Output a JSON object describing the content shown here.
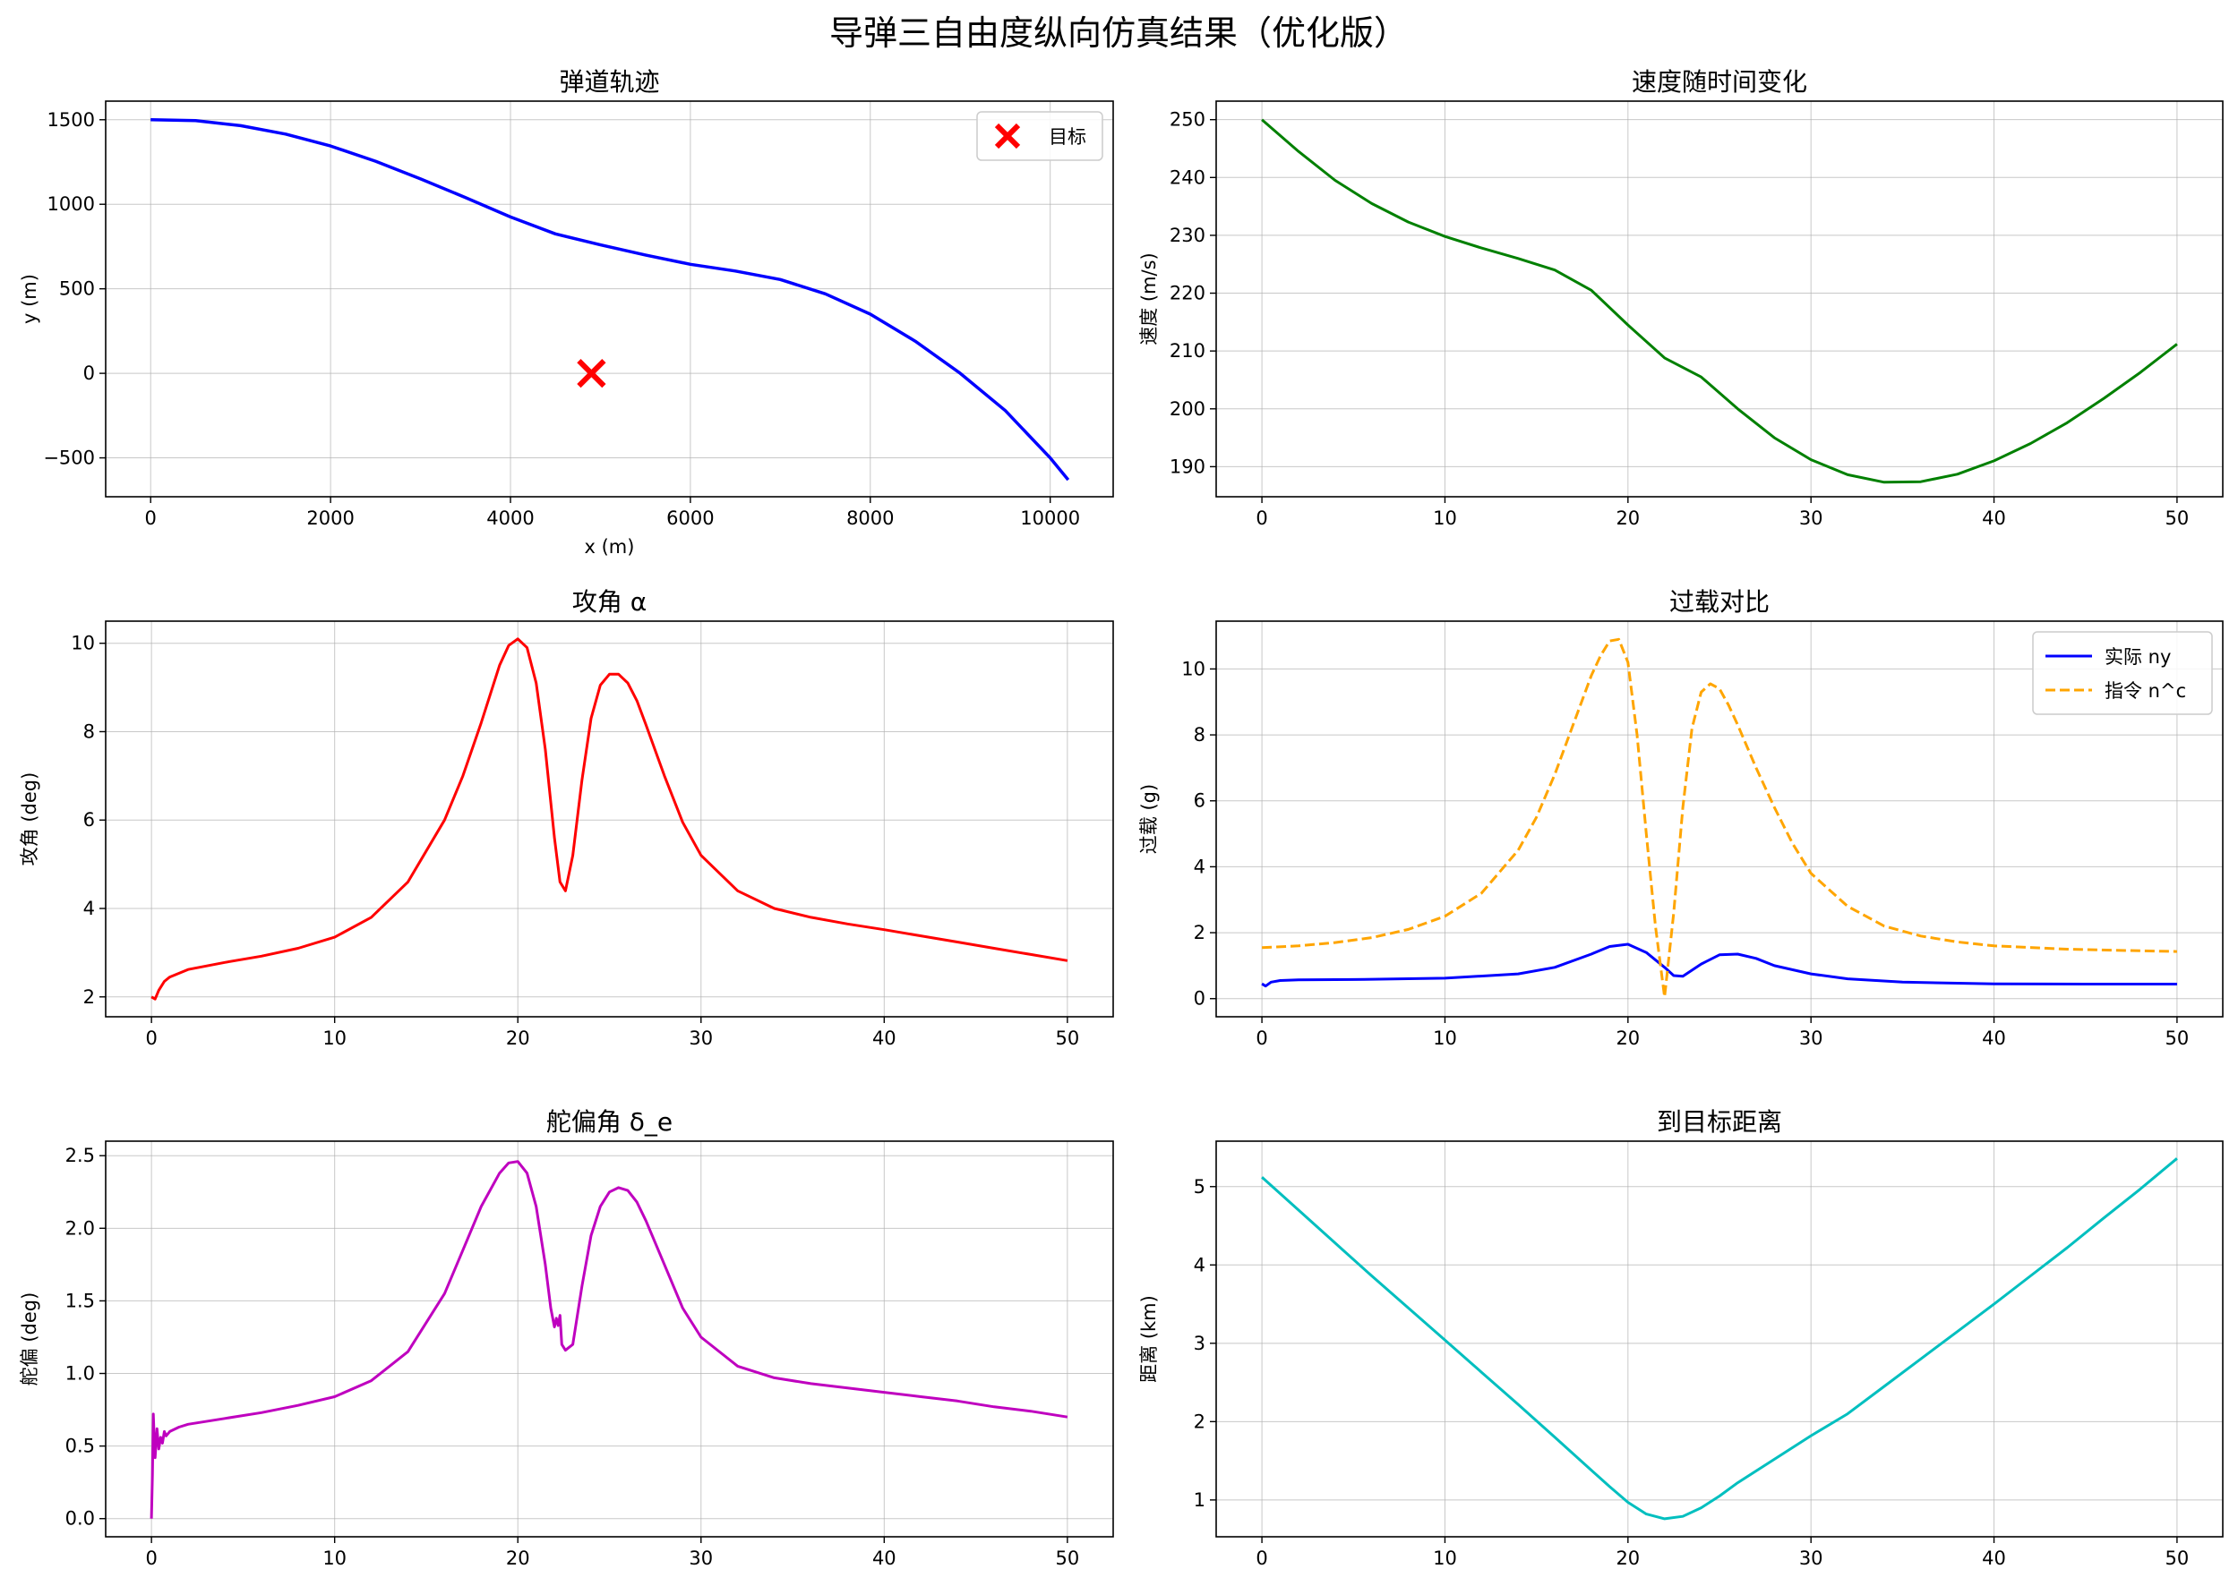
{
  "figure": {
    "title": "导弹三自由度纵向仿真结果（优化版）"
  },
  "chart_data": [
    {
      "id": "trajectory",
      "type": "line",
      "title": "弹道轨迹",
      "xlabel": "x (m)",
      "ylabel": "y (m)",
      "xlim": [
        -500,
        10700
      ],
      "ylim": [
        -730,
        1610
      ],
      "xticks": [
        0,
        2000,
        4000,
        6000,
        8000,
        10000
      ],
      "yticks": [
        -500,
        0,
        500,
        1000,
        1500
      ],
      "grid": true,
      "legend": {
        "position": "top-right",
        "entries": [
          {
            "label": "目标",
            "marker": "x",
            "color": "#ff0000"
          }
        ]
      },
      "series": [
        {
          "name": "",
          "color": "#0000ff",
          "style": "solid",
          "width": 3.5,
          "x": [
            0,
            500,
            1000,
            1500,
            2000,
            2500,
            3000,
            3500,
            4000,
            4500,
            5000,
            5500,
            6000,
            6500,
            7000,
            7500,
            8000,
            8500,
            9000,
            9500,
            10000,
            10200
          ],
          "y": [
            1500,
            1495,
            1465,
            1415,
            1345,
            1255,
            1150,
            1040,
            925,
            825,
            760,
            700,
            645,
            605,
            555,
            470,
            350,
            190,
            0,
            -220,
            -500,
            -630
          ]
        }
      ],
      "markers": [
        {
          "name": "目标",
          "x": 4900,
          "y": 0,
          "color": "#ff0000",
          "symbol": "x"
        }
      ]
    },
    {
      "id": "velocity",
      "type": "line",
      "title": "速度随时间变化",
      "xlabel": "",
      "ylabel": "速度 (m/s)",
      "xlim": [
        -2.5,
        52.5
      ],
      "ylim": [
        184.8,
        253.2
      ],
      "xticks": [
        0,
        10,
        20,
        30,
        40,
        50
      ],
      "yticks": [
        190,
        200,
        210,
        220,
        230,
        240,
        250
      ],
      "grid": true,
      "series": [
        {
          "name": "",
          "color": "#008000",
          "style": "solid",
          "width": 3,
          "x": [
            0,
            2,
            4,
            6,
            8,
            10,
            12,
            14,
            16,
            18,
            20,
            22,
            24,
            26,
            28,
            30,
            32,
            34,
            36,
            38,
            40,
            42,
            44,
            46,
            48,
            50
          ],
          "y": [
            250,
            244.5,
            239.5,
            235.5,
            232.3,
            229.8,
            227.8,
            226,
            224,
            220.5,
            214.5,
            208.8,
            205.5,
            200,
            195,
            191.2,
            188.6,
            187.3,
            187.4,
            188.7,
            191,
            194,
            197.6,
            201.8,
            206.3,
            211.2
          ]
        }
      ]
    },
    {
      "id": "aoa",
      "type": "line",
      "title": "攻角 α",
      "xlabel": "",
      "ylabel": "攻角 (deg)",
      "xlim": [
        -2.5,
        52.5
      ],
      "ylim": [
        1.55,
        10.5
      ],
      "xticks": [
        0,
        10,
        20,
        30,
        40,
        50
      ],
      "yticks": [
        2,
        4,
        6,
        8,
        10
      ],
      "grid": true,
      "series": [
        {
          "name": "",
          "color": "#ff0000",
          "style": "solid",
          "width": 3,
          "x": [
            0,
            0.2,
            0.4,
            0.7,
            1,
            2,
            4,
            6,
            8,
            10,
            12,
            14,
            16,
            17,
            18,
            19,
            19.5,
            20,
            20.5,
            21,
            21.5,
            22,
            22.3,
            22.6,
            23,
            23.5,
            24,
            24.5,
            25,
            25.5,
            26,
            26.5,
            27,
            28,
            29,
            30,
            32,
            34,
            36,
            38,
            40,
            42,
            44,
            46,
            48,
            50
          ],
          "y": [
            2.0,
            1.95,
            2.15,
            2.35,
            2.45,
            2.62,
            2.78,
            2.92,
            3.1,
            3.35,
            3.8,
            4.6,
            6.0,
            7.0,
            8.2,
            9.5,
            9.95,
            10.1,
            9.9,
            9.1,
            7.6,
            5.6,
            4.6,
            4.4,
            5.2,
            6.9,
            8.3,
            9.05,
            9.3,
            9.3,
            9.1,
            8.7,
            8.15,
            7.0,
            5.95,
            5.2,
            4.4,
            4.0,
            3.8,
            3.65,
            3.52,
            3.38,
            3.24,
            3.1,
            2.96,
            2.82
          ]
        }
      ]
    },
    {
      "id": "overload",
      "type": "line",
      "title": "过载对比",
      "xlabel": "",
      "ylabel": "过载 (g)",
      "xlim": [
        -2.5,
        52.5
      ],
      "ylim": [
        -0.55,
        11.45
      ],
      "xticks": [
        0,
        10,
        20,
        30,
        40,
        50
      ],
      "yticks": [
        0,
        2,
        4,
        6,
        8,
        10
      ],
      "grid": true,
      "legend": {
        "position": "top-right"
      },
      "series": [
        {
          "name": "实际 ny",
          "color": "#0000ff",
          "style": "solid",
          "width": 3,
          "x": [
            0,
            0.2,
            0.5,
            1,
            2,
            5,
            10,
            14,
            16,
            18,
            19,
            20,
            21,
            22,
            22.5,
            23,
            24,
            25,
            26,
            27,
            28,
            30,
            32,
            35,
            40,
            45,
            50
          ],
          "y": [
            0.45,
            0.38,
            0.5,
            0.55,
            0.57,
            0.58,
            0.62,
            0.75,
            0.95,
            1.35,
            1.58,
            1.65,
            1.4,
            0.95,
            0.7,
            0.68,
            1.05,
            1.33,
            1.35,
            1.22,
            1.0,
            0.75,
            0.6,
            0.5,
            0.45,
            0.44,
            0.44
          ]
        },
        {
          "name": "指令 n^c",
          "color": "#ffa500",
          "style": "dashed",
          "width": 3,
          "x": [
            0,
            2,
            4,
            6,
            8,
            10,
            12,
            14,
            15,
            16,
            17,
            18,
            18.5,
            19,
            19.5,
            20,
            20.5,
            21,
            21.5,
            22,
            22.5,
            23,
            23.5,
            24,
            24.5,
            25,
            25.5,
            26,
            27,
            28,
            29,
            30,
            32,
            34,
            36,
            38,
            40,
            44,
            48,
            50
          ],
          "y": [
            1.55,
            1.6,
            1.7,
            1.85,
            2.1,
            2.5,
            3.2,
            4.5,
            5.5,
            6.8,
            8.3,
            9.8,
            10.4,
            10.85,
            10.9,
            10.2,
            8.0,
            5.0,
            2.2,
            0.05,
            2.6,
            5.8,
            8.2,
            9.3,
            9.55,
            9.4,
            8.9,
            8.3,
            7.0,
            5.8,
            4.7,
            3.8,
            2.8,
            2.2,
            1.9,
            1.72,
            1.6,
            1.5,
            1.45,
            1.43
          ]
        }
      ]
    },
    {
      "id": "elevator",
      "type": "line",
      "title": "舵偏角 δ_e",
      "xlabel": "",
      "ylabel": "舵偏 (deg)",
      "xlim": [
        -2.5,
        52.5
      ],
      "ylim": [
        -0.125,
        2.6
      ],
      "xticks": [
        0,
        10,
        20,
        30,
        40,
        50
      ],
      "yticks": [
        0.0,
        0.5,
        1.0,
        1.5,
        2.0,
        2.5
      ],
      "ytick_labels": [
        "0.0",
        "0.5",
        "1.0",
        "1.5",
        "2.0",
        "2.5"
      ],
      "grid": true,
      "series": [
        {
          "name": "",
          "color": "#bf00bf",
          "style": "solid",
          "width": 3,
          "x": [
            0,
            0.05,
            0.1,
            0.15,
            0.2,
            0.3,
            0.4,
            0.5,
            0.6,
            0.7,
            0.8,
            1,
            1.5,
            2,
            4,
            6,
            8,
            10,
            12,
            14,
            16,
            17,
            18,
            19,
            19.5,
            20,
            20.5,
            21,
            21.5,
            21.8,
            22,
            22.1,
            22.2,
            22.3,
            22.4,
            22.6,
            23,
            23.5,
            24,
            24.5,
            25,
            25.5,
            26,
            26.5,
            27,
            28,
            29,
            30,
            32,
            34,
            36,
            38,
            40,
            42,
            44,
            46,
            48,
            50
          ],
          "y": [
            0.0,
            0.3,
            0.72,
            0.55,
            0.42,
            0.62,
            0.48,
            0.56,
            0.52,
            0.6,
            0.57,
            0.6,
            0.63,
            0.65,
            0.69,
            0.73,
            0.78,
            0.84,
            0.95,
            1.15,
            1.55,
            1.85,
            2.15,
            2.38,
            2.45,
            2.46,
            2.38,
            2.15,
            1.75,
            1.45,
            1.32,
            1.38,
            1.33,
            1.4,
            1.2,
            1.16,
            1.2,
            1.6,
            1.95,
            2.15,
            2.25,
            2.28,
            2.26,
            2.18,
            2.05,
            1.75,
            1.45,
            1.25,
            1.05,
            0.97,
            0.93,
            0.9,
            0.87,
            0.84,
            0.81,
            0.77,
            0.74,
            0.7
          ]
        }
      ]
    },
    {
      "id": "distance",
      "type": "line",
      "title": "到目标距离",
      "xlabel": "",
      "ylabel": "距离 (km)",
      "xlim": [
        -2.5,
        52.5
      ],
      "ylim": [
        0.53,
        5.58
      ],
      "xticks": [
        0,
        10,
        20,
        30,
        40,
        50
      ],
      "yticks": [
        1,
        2,
        3,
        4,
        5
      ],
      "grid": true,
      "series": [
        {
          "name": "",
          "color": "#00bfbf",
          "style": "solid",
          "width": 3,
          "x": [
            0,
            2,
            4,
            6,
            8,
            10,
            12,
            14,
            16,
            18,
            19,
            20,
            21,
            22,
            23,
            24,
            25,
            26,
            28,
            30,
            32,
            34,
            36,
            38,
            40,
            42,
            44,
            46,
            48,
            50
          ],
          "y": [
            5.12,
            4.7,
            4.28,
            3.86,
            3.45,
            3.04,
            2.63,
            2.22,
            1.8,
            1.38,
            1.17,
            0.97,
            0.82,
            0.76,
            0.79,
            0.9,
            1.05,
            1.22,
            1.52,
            1.82,
            2.1,
            2.45,
            2.8,
            3.15,
            3.5,
            3.86,
            4.22,
            4.6,
            4.97,
            5.36
          ]
        }
      ]
    }
  ]
}
